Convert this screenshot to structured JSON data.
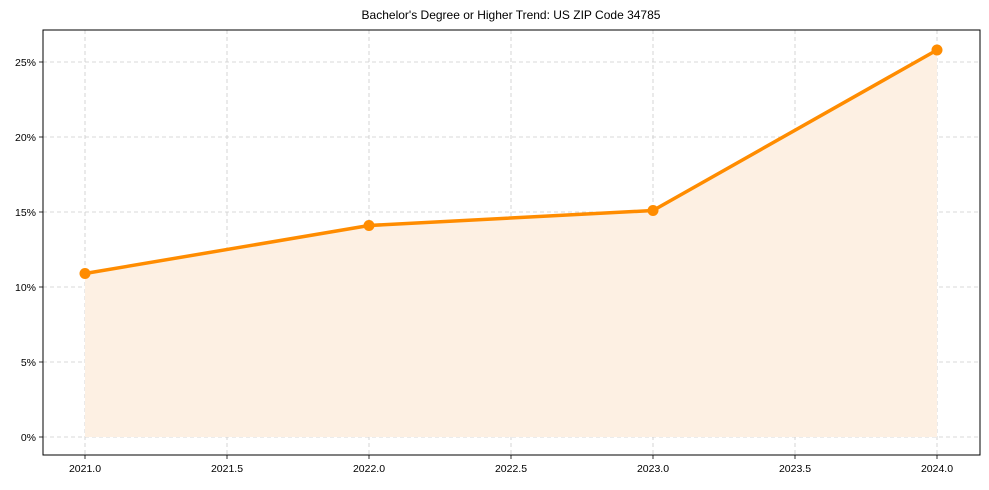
{
  "chart_data": {
    "type": "line",
    "title": "Bachelor's Degree or Higher Trend: US ZIP Code 34785",
    "xlabel": "",
    "ylabel": "",
    "x": [
      2021,
      2022,
      2023,
      2024
    ],
    "series": [
      {
        "name": "Bachelor's Degree or Higher",
        "values": [
          10.9,
          14.1,
          15.1,
          25.8
        ],
        "color": "#ff8c00",
        "fill": "#fdf0e3",
        "marker": "circle"
      }
    ],
    "xticks": [
      "2021.0",
      "2021.5",
      "2022.0",
      "2022.5",
      "2023.0",
      "2023.5",
      "2024.0"
    ],
    "yticks": [
      "0%",
      "5%",
      "10%",
      "15%",
      "20%",
      "25%"
    ],
    "xlim": [
      2020.85,
      2024.15
    ],
    "ylim": [
      -1.2,
      27.1
    ],
    "grid": true,
    "legend": null
  }
}
